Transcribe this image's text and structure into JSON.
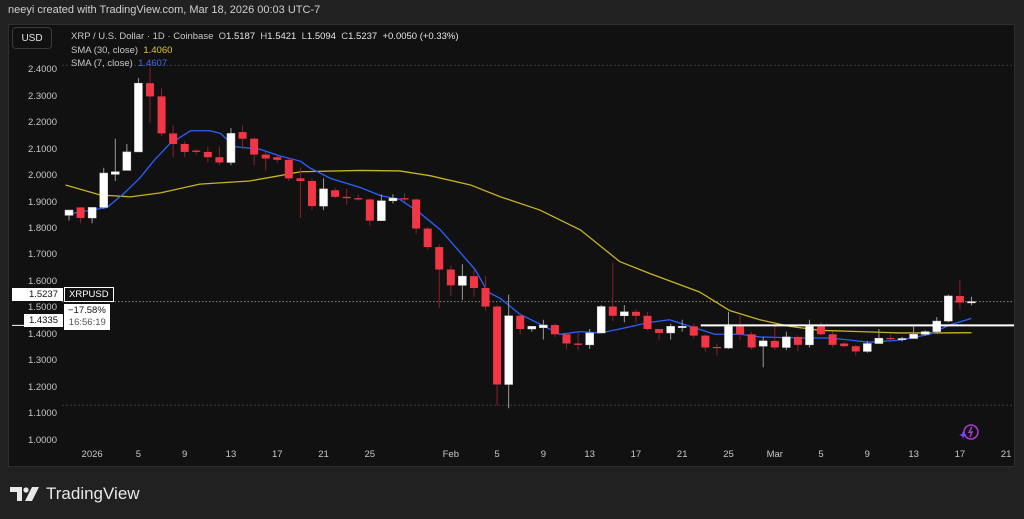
{
  "header": {
    "credit": "neeyi created with TradingView.com, Mar 18, 2026 00:03 UTC-7"
  },
  "currency_button": "USD",
  "legend": {
    "symbol": "XRP / U.S. Dollar · 1D · Coinbase",
    "o_label": "O",
    "o": "1.5187",
    "h_label": "H",
    "h": "1.5421",
    "l_label": "L",
    "l": "1.5094",
    "c_label": "C",
    "c": "1.5237",
    "change": "+0.0050 (+0.33%)",
    "sma30_label": "SMA (30, close)",
    "sma30_value": "1.4060",
    "sma7_label": "SMA (7, close)",
    "sma7_value": "1.4607"
  },
  "price_label": {
    "price": "1.5237",
    "change_pct": "−17.58%",
    "countdown": "16:56:19",
    "symbol_tag": "XRPUSD"
  },
  "hline_label": "1.4335",
  "brand": "TradingView",
  "colors": {
    "up": "#ffffff",
    "down": "#f23645",
    "sma30": "#c8b41e",
    "sma7": "#2962ff",
    "accent": "#b03ad6"
  },
  "chart_data": {
    "type": "candlestick",
    "title": "XRP / U.S. Dollar · 1D · Coinbase",
    "first_date": "2025-12-30",
    "ylim": [
      1.0,
      2.4
    ],
    "yticks": [
      "2.4000",
      "2.3000",
      "2.2000",
      "2.1000",
      "2.0000",
      "1.9000",
      "1.8000",
      "1.7000",
      "1.6000",
      "1.5000",
      "1.4000",
      "1.3000",
      "1.2000",
      "1.1000",
      "1.0000"
    ],
    "xticks": [
      {
        "label": "2026",
        "day": 2
      },
      {
        "label": "5",
        "day": 6
      },
      {
        "label": "9",
        "day": 10
      },
      {
        "label": "13",
        "day": 14
      },
      {
        "label": "17",
        "day": 18
      },
      {
        "label": "21",
        "day": 22
      },
      {
        "label": "25",
        "day": 26
      },
      {
        "label": "Feb",
        "day": 33
      },
      {
        "label": "5",
        "day": 37
      },
      {
        "label": "9",
        "day": 41
      },
      {
        "label": "13",
        "day": 45
      },
      {
        "label": "17",
        "day": 49
      },
      {
        "label": "21",
        "day": 53
      },
      {
        "label": "25",
        "day": 57
      },
      {
        "label": "Mar",
        "day": 61
      },
      {
        "label": "5",
        "day": 65
      },
      {
        "label": "9",
        "day": 69
      },
      {
        "label": "13",
        "day": 73
      },
      {
        "label": "17",
        "day": 77
      },
      {
        "label": "21",
        "day": 81
      }
    ],
    "ohlc": [
      [
        1.85,
        1.86,
        1.83,
        1.87
      ],
      [
        1.88,
        1.88,
        1.82,
        1.84
      ],
      [
        1.84,
        1.88,
        1.82,
        1.88
      ],
      [
        1.88,
        2.03,
        1.875,
        2.01
      ],
      [
        2.005,
        2.14,
        1.98,
        2.015
      ],
      [
        2.02,
        2.12,
        2.02,
        2.09
      ],
      [
        2.09,
        2.37,
        2.09,
        2.35
      ],
      [
        2.35,
        2.41,
        2.2,
        2.3
      ],
      [
        2.3,
        2.33,
        2.15,
        2.16
      ],
      [
        2.16,
        2.19,
        2.07,
        2.12
      ],
      [
        2.12,
        2.13,
        2.07,
        2.09
      ],
      [
        2.095,
        2.1,
        2.08,
        2.09
      ],
      [
        2.09,
        2.11,
        2.05,
        2.07
      ],
      [
        2.07,
        2.11,
        2.04,
        2.05
      ],
      [
        2.05,
        2.18,
        2.04,
        2.16
      ],
      [
        2.165,
        2.19,
        2.1,
        2.14
      ],
      [
        2.14,
        2.145,
        2.04,
        2.08
      ],
      [
        2.08,
        2.09,
        2.02,
        2.065
      ],
      [
        2.07,
        2.075,
        2.05,
        2.06
      ],
      [
        2.06,
        2.07,
        1.98,
        1.99
      ],
      [
        1.99,
        2.03,
        1.84,
        1.98
      ],
      [
        1.98,
        1.99,
        1.87,
        1.885
      ],
      [
        1.885,
        1.99,
        1.87,
        1.95
      ],
      [
        1.945,
        1.955,
        1.915,
        1.92
      ],
      [
        1.92,
        1.95,
        1.89,
        1.915
      ],
      [
        1.915,
        1.93,
        1.905,
        1.91
      ],
      [
        1.91,
        1.915,
        1.81,
        1.83
      ],
      [
        1.83,
        1.93,
        1.83,
        1.905
      ],
      [
        1.905,
        1.93,
        1.895,
        1.915
      ],
      [
        1.915,
        1.935,
        1.9,
        1.91
      ],
      [
        1.91,
        1.915,
        1.78,
        1.8
      ],
      [
        1.8,
        1.805,
        1.72,
        1.73
      ],
      [
        1.73,
        1.74,
        1.5,
        1.645
      ],
      [
        1.645,
        1.66,
        1.545,
        1.585
      ],
      [
        1.585,
        1.665,
        1.53,
        1.62
      ],
      [
        1.62,
        1.645,
        1.54,
        1.575
      ],
      [
        1.575,
        1.62,
        1.49,
        1.505
      ],
      [
        1.505,
        1.51,
        1.13,
        1.21
      ],
      [
        1.21,
        1.55,
        1.12,
        1.47
      ],
      [
        1.47,
        1.48,
        1.4,
        1.42
      ],
      [
        1.42,
        1.43,
        1.41,
        1.43
      ],
      [
        1.425,
        1.455,
        1.38,
        1.435
      ],
      [
        1.435,
        1.44,
        1.39,
        1.4
      ],
      [
        1.4,
        1.405,
        1.345,
        1.365
      ],
      [
        1.365,
        1.405,
        1.34,
        1.36
      ],
      [
        1.36,
        1.42,
        1.345,
        1.405
      ],
      [
        1.405,
        1.51,
        1.405,
        1.505
      ],
      [
        1.505,
        1.67,
        1.45,
        1.47
      ],
      [
        1.47,
        1.51,
        1.445,
        1.485
      ],
      [
        1.485,
        1.495,
        1.445,
        1.47
      ],
      [
        1.47,
        1.485,
        1.415,
        1.42
      ],
      [
        1.42,
        1.42,
        1.38,
        1.405
      ],
      [
        1.405,
        1.44,
        1.38,
        1.43
      ],
      [
        1.425,
        1.455,
        1.41,
        1.43
      ],
      [
        1.43,
        1.44,
        1.385,
        1.395
      ],
      [
        1.395,
        1.4,
        1.335,
        1.35
      ],
      [
        1.352,
        1.365,
        1.32,
        1.348
      ],
      [
        1.348,
        1.485,
        1.345,
        1.43
      ],
      [
        1.43,
        1.47,
        1.38,
        1.4
      ],
      [
        1.4,
        1.41,
        1.34,
        1.35
      ],
      [
        1.355,
        1.39,
        1.275,
        1.375
      ],
      [
        1.375,
        1.435,
        1.34,
        1.35
      ],
      [
        1.35,
        1.41,
        1.34,
        1.39
      ],
      [
        1.39,
        1.395,
        1.335,
        1.36
      ],
      [
        1.36,
        1.455,
        1.35,
        1.43
      ],
      [
        1.43,
        1.445,
        1.395,
        1.4
      ],
      [
        1.4,
        1.41,
        1.35,
        1.36
      ],
      [
        1.365,
        1.37,
        1.35,
        1.355
      ],
      [
        1.355,
        1.36,
        1.32,
        1.335
      ],
      [
        1.335,
        1.375,
        1.33,
        1.365
      ],
      [
        1.365,
        1.42,
        1.365,
        1.385
      ],
      [
        1.386,
        1.4,
        1.37,
        1.383
      ],
      [
        1.382,
        1.39,
        1.373,
        1.384
      ],
      [
        1.384,
        1.435,
        1.383,
        1.4
      ],
      [
        1.4,
        1.415,
        1.395,
        1.41
      ],
      [
        1.41,
        1.465,
        1.405,
        1.45
      ],
      [
        1.45,
        1.55,
        1.445,
        1.545
      ],
      [
        1.545,
        1.605,
        1.495,
        1.52
      ],
      [
        1.5187,
        1.5421,
        1.5094,
        1.5237
      ]
    ],
    "sma30": [
      [
        -0.3,
        1.965
      ],
      [
        2.7,
        1.927
      ],
      [
        5.3,
        1.92
      ],
      [
        7.9,
        1.935
      ],
      [
        11.3,
        1.968
      ],
      [
        15.6,
        1.98
      ],
      [
        18.2,
        2.0
      ],
      [
        20,
        2.015
      ],
      [
        25.2,
        2.02
      ],
      [
        28.6,
        2.018
      ],
      [
        31.2,
        2.0
      ],
      [
        34.7,
        1.965
      ],
      [
        37.3,
        1.92
      ],
      [
        40.7,
        1.87
      ],
      [
        44.2,
        1.795
      ],
      [
        47.6,
        1.675
      ],
      [
        50.2,
        1.63
      ],
      [
        54.5,
        1.56
      ],
      [
        57.1,
        1.49
      ],
      [
        59.7,
        1.455
      ],
      [
        62.3,
        1.43
      ],
      [
        64.9,
        1.415
      ],
      [
        68.4,
        1.41
      ],
      [
        71.8,
        1.405
      ],
      [
        75.3,
        1.405
      ],
      [
        78,
        1.406
      ]
    ],
    "sma7": [
      [
        0,
        1.855
      ],
      [
        3.3,
        1.88
      ],
      [
        4.8,
        1.935
      ],
      [
        6.1,
        1.99
      ],
      [
        7.4,
        2.06
      ],
      [
        8.7,
        2.12
      ],
      [
        10.5,
        2.17
      ],
      [
        12.2,
        2.17
      ],
      [
        13.1,
        2.16
      ],
      [
        14.3,
        2.11
      ],
      [
        16.5,
        2.1
      ],
      [
        18.2,
        2.075
      ],
      [
        20,
        2.055
      ],
      [
        20.8,
        2.03
      ],
      [
        22.6,
        1.99
      ],
      [
        25.2,
        1.955
      ],
      [
        26.9,
        1.925
      ],
      [
        28.6,
        1.91
      ],
      [
        30.3,
        1.86
      ],
      [
        32.1,
        1.795
      ],
      [
        33.8,
        1.71
      ],
      [
        35.1,
        1.645
      ],
      [
        36.2,
        1.56
      ],
      [
        37.3,
        1.535
      ],
      [
        39,
        1.475
      ],
      [
        41.1,
        1.43
      ],
      [
        42.4,
        1.4
      ],
      [
        44.2,
        1.41
      ],
      [
        45.9,
        1.405
      ],
      [
        47.6,
        1.42
      ],
      [
        50.2,
        1.445
      ],
      [
        51.9,
        1.455
      ],
      [
        53.7,
        1.43
      ],
      [
        55.8,
        1.4
      ],
      [
        58,
        1.4
      ],
      [
        59.7,
        1.39
      ],
      [
        63.2,
        1.386
      ],
      [
        65.8,
        1.386
      ],
      [
        69.2,
        1.37
      ],
      [
        71.8,
        1.378
      ],
      [
        74.4,
        1.4
      ],
      [
        76.1,
        1.435
      ],
      [
        78,
        1.46
      ]
    ],
    "current_price": 1.5237,
    "horizontal_line": {
      "price": 1.4335,
      "from_day": 54.6
    },
    "range_high": 2.41,
    "range_low": 1.12
  }
}
